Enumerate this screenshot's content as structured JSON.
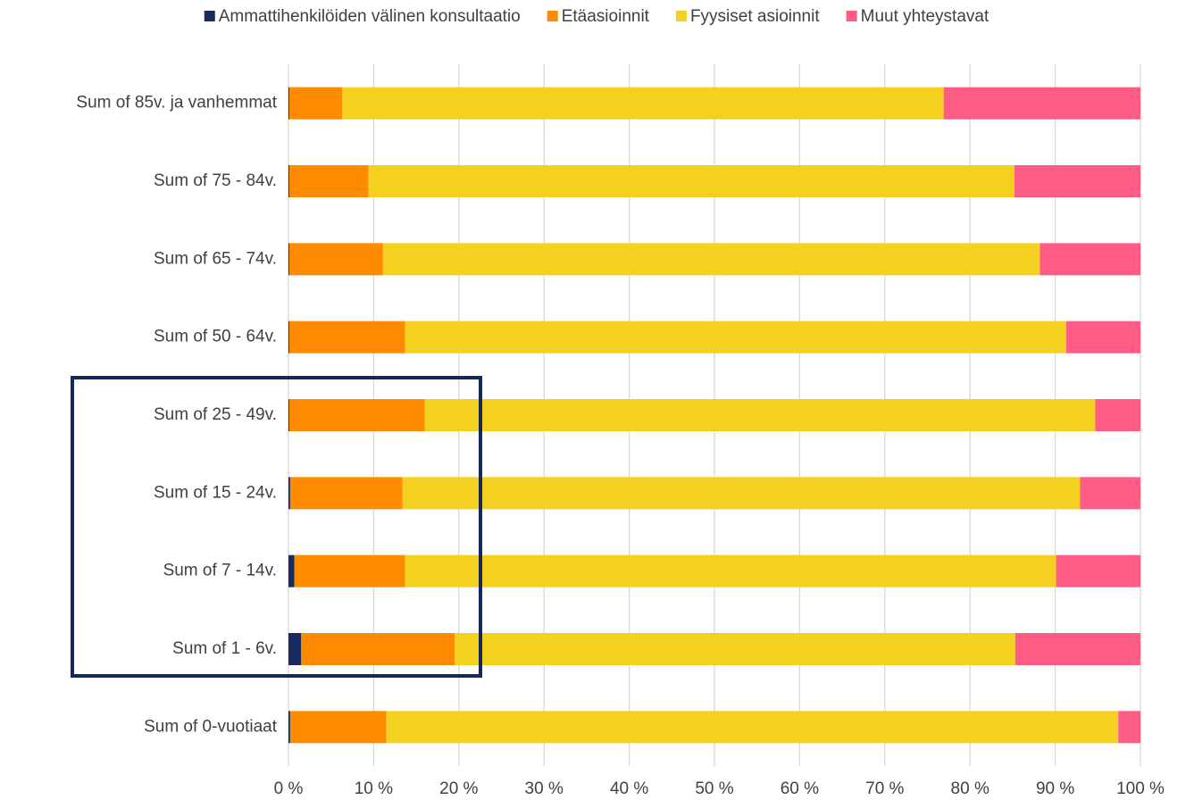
{
  "chart_data": {
    "type": "stacked-bar-horizontal",
    "categories": [
      "Sum of 85v. ja vanhemmat",
      "Sum of 75 - 84v.",
      "Sum of 65 - 74v.",
      "Sum of 50 - 64v.",
      "Sum of 25 - 49v.",
      "Sum of 15 - 24v.",
      "Sum of 7 - 14v.",
      "Sum of 1 - 6v.",
      "Sum of 0-vuotiaat"
    ],
    "series": [
      {
        "name": "Ammattihenkilöiden välinen konsultaatio",
        "color": "#1b2a5c",
        "values": [
          0.1,
          0.1,
          0.1,
          0.1,
          0.1,
          0.2,
          0.7,
          1.5,
          0.2
        ]
      },
      {
        "name": "Etäasioinnit",
        "color": "#ff8c00",
        "values": [
          6.2,
          9.3,
          11.0,
          13.6,
          15.9,
          13.2,
          13.0,
          18.0,
          11.3
        ]
      },
      {
        "name": "Fyysiset asioinnit",
        "color": "#f4d120",
        "values": [
          70.6,
          75.8,
          77.1,
          77.6,
          78.7,
          79.5,
          76.4,
          65.8,
          85.9
        ]
      },
      {
        "name": "Muut yhteystavat",
        "color": "#ff5c85",
        "values": [
          23.1,
          14.8,
          11.8,
          8.7,
          5.3,
          7.1,
          9.9,
          14.7,
          2.6
        ]
      }
    ],
    "xlim": [
      0,
      100
    ],
    "xticks": [
      {
        "value": 0,
        "label": "0 %"
      },
      {
        "value": 10,
        "label": "10 %"
      },
      {
        "value": 20,
        "label": "20 %"
      },
      {
        "value": 30,
        "label": "30 %"
      },
      {
        "value": 40,
        "label": "40 %"
      },
      {
        "value": 50,
        "label": "50 %"
      },
      {
        "value": 60,
        "label": "60 %"
      },
      {
        "value": 70,
        "label": "70 %"
      },
      {
        "value": 80,
        "label": "80 %"
      },
      {
        "value": 90,
        "label": "90 %"
      },
      {
        "value": 100,
        "label": "100 %"
      }
    ],
    "grid": true,
    "legend": "top"
  }
}
